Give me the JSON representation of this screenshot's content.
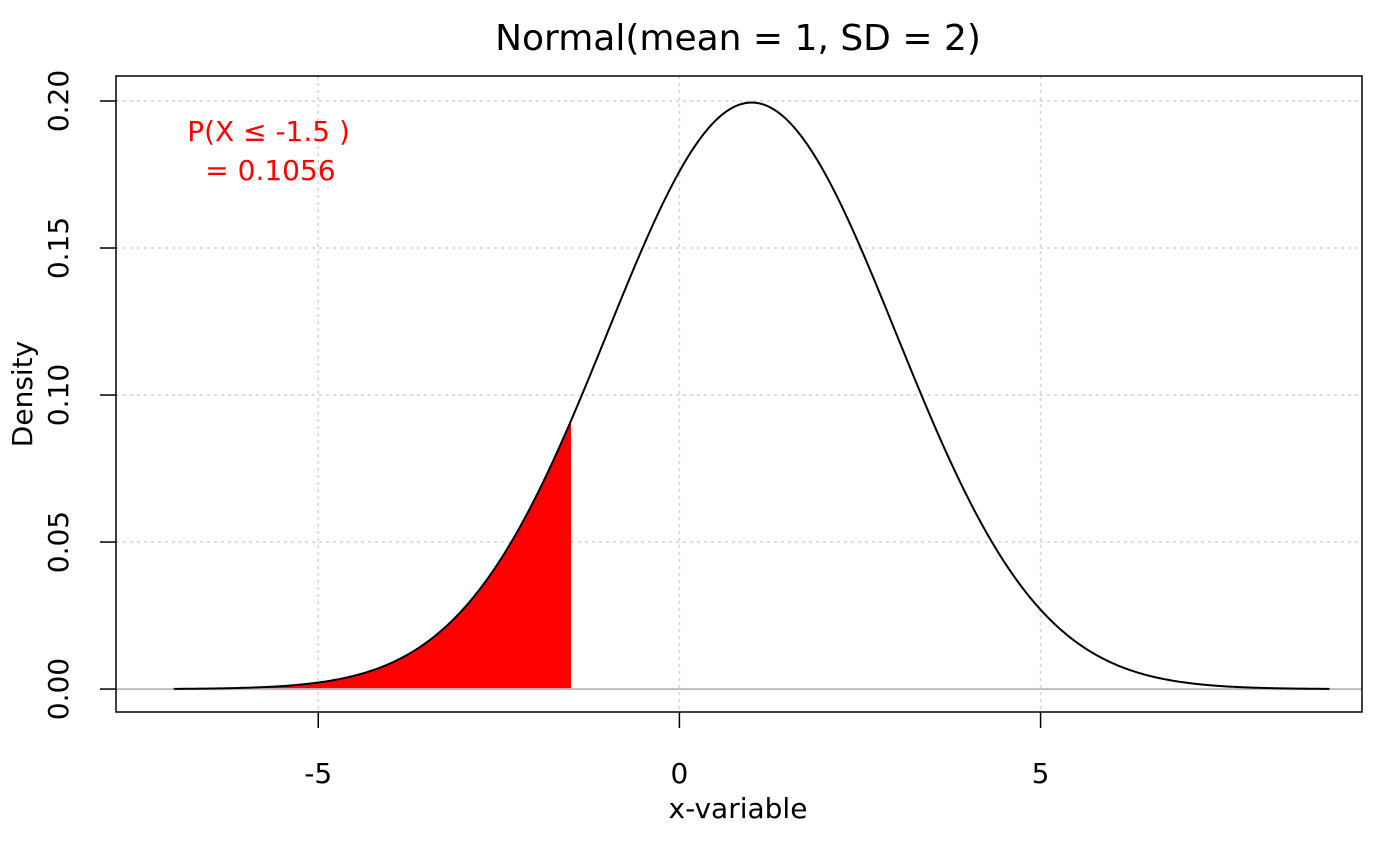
{
  "chart_data": {
    "type": "area",
    "title": "Normal(mean = 1,  SD = 2)",
    "xlabel": "x-variable",
    "ylabel": "Density",
    "xlim": [
      -7.8,
      9.45
    ],
    "ylim": [
      -0.0078,
      0.2085
    ],
    "x_ticks": [
      {
        "value": -5,
        "label": "-5"
      },
      {
        "value": 0,
        "label": "0"
      },
      {
        "value": 5,
        "label": "5"
      }
    ],
    "y_ticks": [
      {
        "value": 0.0,
        "label": "0.00"
      },
      {
        "value": 0.05,
        "label": "0.05"
      },
      {
        "value": 0.1,
        "label": "0.10"
      },
      {
        "value": 0.15,
        "label": "0.15"
      },
      {
        "value": 0.2,
        "label": "0.20"
      }
    ],
    "grid": true,
    "distribution": {
      "family": "normal",
      "mean": 1,
      "sd": 2
    },
    "curve_range": [
      -7,
      9
    ],
    "curve": {
      "x": [
        -7,
        -6.5,
        -6,
        -5.5,
        -5,
        -4.5,
        -4,
        -3.5,
        -3,
        -2.5,
        -2,
        -1.5,
        -1,
        -0.5,
        0,
        0.5,
        1,
        1.5,
        2,
        2.5,
        3,
        3.5,
        4,
        4.5,
        5,
        5.5,
        6,
        6.5,
        7,
        7.5,
        8,
        8.5,
        9
      ],
      "y": [
        0.0001,
        0.0002,
        0.0004,
        0.0009,
        0.0022,
        0.0045,
        0.0088,
        0.016,
        0.027,
        0.0431,
        0.0648,
        0.0913,
        0.121,
        0.1506,
        0.176,
        0.1933,
        0.1995,
        0.1933,
        0.176,
        0.1506,
        0.121,
        0.0913,
        0.0648,
        0.0431,
        0.027,
        0.016,
        0.0088,
        0.0045,
        0.0022,
        0.0009,
        0.0004,
        0.0002,
        0.0001
      ]
    },
    "shaded_region": {
      "from": -7,
      "to": -1.5,
      "color": "#ff0000"
    },
    "curve_color": "#000000",
    "baseline_color": "#bebebe",
    "grid_color": "#d3d3d3",
    "annotation": {
      "lines": [
        "P(X ≤ -1.5 )",
        " = 0.1056"
      ],
      "color": "#ff0000"
    }
  }
}
